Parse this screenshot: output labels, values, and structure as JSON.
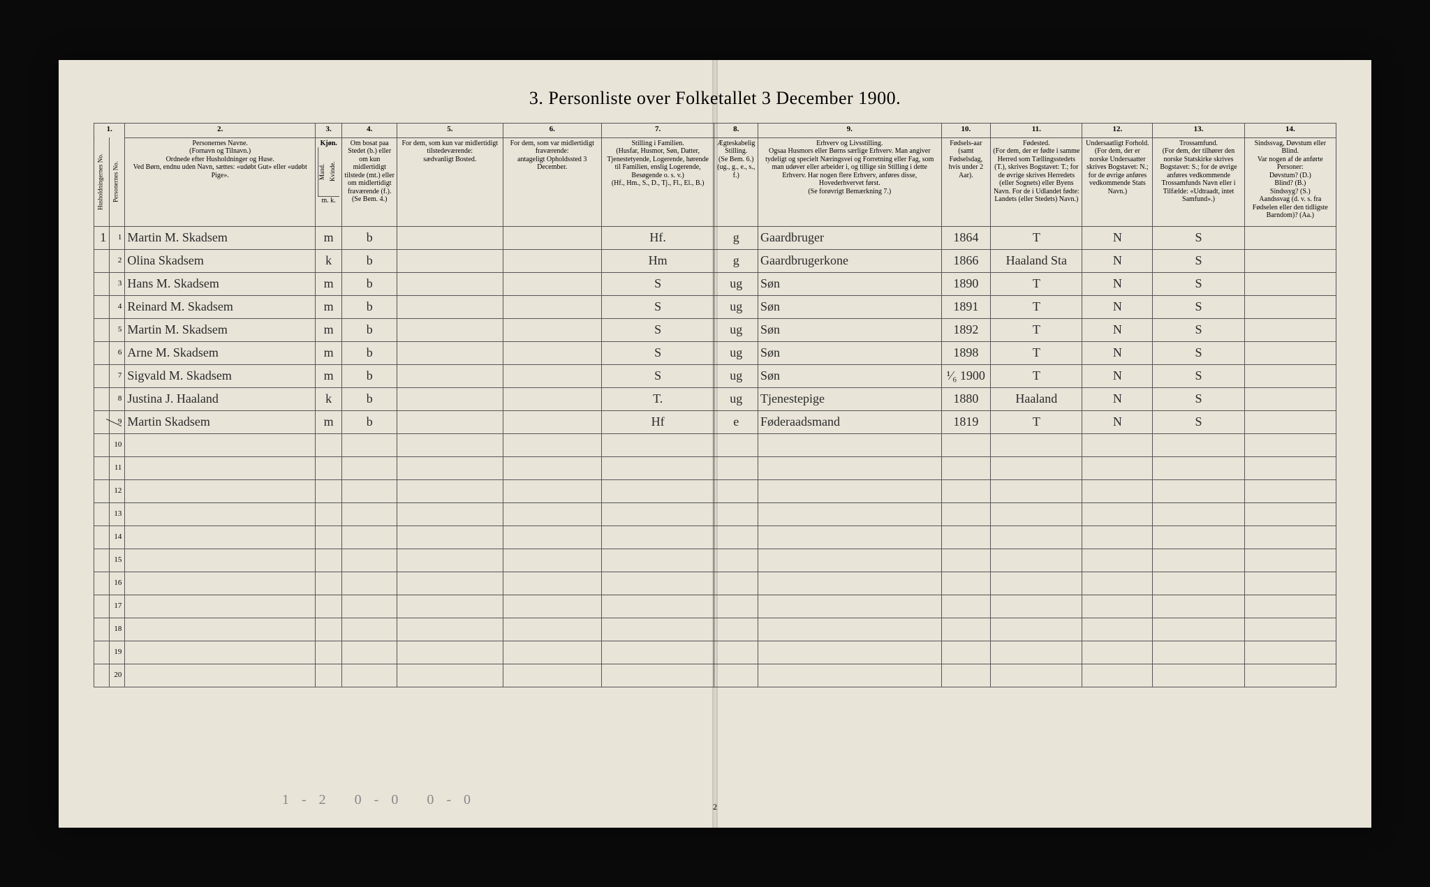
{
  "title": "3. Personliste over Folketallet 3 December 1900.",
  "page_number": "2",
  "pencil_note": "1-2 0-0 0-0",
  "columns": {
    "c1": "1.",
    "c2": "2.",
    "c3": "3.",
    "c4": "4.",
    "c5": "5.",
    "c6": "6.",
    "c7": "7.",
    "c8": "8.",
    "c9": "9.",
    "c10": "10.",
    "c11": "11.",
    "c12": "12.",
    "c13": "13.",
    "c14": "14."
  },
  "headers": {
    "h1a": "Husholdningernes No.",
    "h1b": "Personernes No.",
    "h2": "Personernes Navne.\n(Fornavn og Tilnavn.)\nOrdnede efter Husholdninger og Huse.\nVed Børn, endnu uden Navn, sættes: «udøbt Gut» eller «udøbt Pige».",
    "h3": "Kjøn.",
    "h3a": "Mand.",
    "h3b": "Kvinde.",
    "h3c": "m. k.",
    "h4": "Om bosat paa Stedet (b.) eller om kun midlertidigt tilstede (mt.) eller om midlertidigt fraværende (f.). (Se Bem. 4.)",
    "h5": "For dem, som kun var midlertidigt tilstedeværende:\nsædvanligt Bosted.",
    "h6": "For dem, som var midlertidigt fraværende:\nantageligt Opholdssted 3 December.",
    "h7": "Stilling i Familien.\n(Husfar, Husmor, Søn, Datter, Tjenestetyende, Logerende, hørende til Familien, enslig Logerende, Besøgende o. s. v.)\n(Hf., Hm., S., D., Tj., Fl., El., B.)",
    "h8": "Ægteskabelig Stilling.\n(Se Bem. 6.)\n(ug., g., e., s., f.)",
    "h9": "Erhverv og Livsstilling.\nOgsaa Husmors eller Børns særlige Erhverv. Man angiver tydeligt og specielt Næringsvei og Forretning eller Fag, som man udøver eller arbeider i, og tillige sin Stilling i dette Erhverv. Har nogen flere Erhverv, anføres disse, Hovederhvervet først.\n(Se forøvrigt Bemærkning 7.)",
    "h10": "Fødsels-aar\n(samt Fødselsdag, hvis under 2 Aar).",
    "h11": "Fødested.\n(For dem, der er fødte i samme Herred som Tællingsstedets (T.), skrives Bogstavet: T.; for de øvrige skrives Herredets (eller Sognets) eller Byens Navn. For de i Udlandet fødte: Landets (eller Stedets) Navn.)",
    "h12": "Undersaatligt Forhold.\n(For dem, der er norske Undersaatter skrives Bogstavet: N.; for de øvrige anføres vedkommende Stats Navn.)",
    "h13": "Trossamfund.\n(For dem, der tilhører den norske Statskirke skrives Bogstavet: S.; for de øvrige anføres vedkommende Trossamfunds Navn eller i Tilfælde: «Udtraadt, intet Samfund».)",
    "h14": "Sindssvag, Døvstum eller Blind.\nVar nogen af de anførte Personer:\nDøvstum? (D.)\nBlind? (B.)\nSindssyg? (S.)\nAandssvag (d. v. s. fra Fødselen eller den tidligste Barndom)? (Aa.)"
  },
  "rows": [
    {
      "hh": "1",
      "pn": "1",
      "name": "Martin M. Skadsem",
      "sex": "m",
      "res": "b",
      "c5": "",
      "c6": "",
      "fam": "Hf.",
      "mar": "g",
      "occ": "Gaardbruger",
      "year": "1864",
      "birthplace": "T",
      "nat": "N",
      "rel": "S",
      "c14": ""
    },
    {
      "hh": "",
      "pn": "2",
      "name": "Olina Skadsem",
      "sex": "k",
      "res": "b",
      "c5": "",
      "c6": "",
      "fam": "Hm",
      "mar": "g",
      "occ": "Gaardbrugerkone",
      "year": "1866",
      "birthplace": "Haaland Sta",
      "nat": "N",
      "rel": "S",
      "c14": ""
    },
    {
      "hh": "",
      "pn": "3",
      "name": "Hans M. Skadsem",
      "sex": "m",
      "res": "b",
      "c5": "",
      "c6": "",
      "fam": "S",
      "mar": "ug",
      "occ": "Søn",
      "year": "1890",
      "birthplace": "T",
      "nat": "N",
      "rel": "S",
      "c14": ""
    },
    {
      "hh": "",
      "pn": "4",
      "name": "Reinard M. Skadsem",
      "sex": "m",
      "res": "b",
      "c5": "",
      "c6": "",
      "fam": "S",
      "mar": "ug",
      "occ": "Søn",
      "year": "1891",
      "birthplace": "T",
      "nat": "N",
      "rel": "S",
      "c14": ""
    },
    {
      "hh": "",
      "pn": "5",
      "name": "Martin M. Skadsem",
      "sex": "m",
      "res": "b",
      "c5": "",
      "c6": "",
      "fam": "S",
      "mar": "ug",
      "occ": "Søn",
      "year": "1892",
      "birthplace": "T",
      "nat": "N",
      "rel": "S",
      "c14": ""
    },
    {
      "hh": "",
      "pn": "6",
      "name": "Arne M. Skadsem",
      "sex": "m",
      "res": "b",
      "c5": "",
      "c6": "",
      "fam": "S",
      "mar": "ug",
      "occ": "Søn",
      "year": "1898",
      "birthplace": "T",
      "nat": "N",
      "rel": "S",
      "c14": ""
    },
    {
      "hh": "",
      "pn": "7",
      "name": "Sigvald M. Skadsem",
      "sex": "m",
      "res": "b",
      "c5": "",
      "c6": "",
      "fam": "S",
      "mar": "ug",
      "occ": "Søn",
      "year": "¹⁄₆ 1900",
      "birthplace": "T",
      "nat": "N",
      "rel": "S",
      "c14": ""
    },
    {
      "hh": "",
      "pn": "8",
      "name": "Justina J. Haaland",
      "sex": "k",
      "res": "b",
      "c5": "",
      "c6": "",
      "fam": "T.",
      "mar": "ug",
      "occ": "Tjenestepige",
      "year": "1880",
      "birthplace": "Haaland",
      "nat": "N",
      "rel": "S",
      "c14": ""
    },
    {
      "hh": "",
      "pn": "9",
      "name": "Martin Skadsem",
      "sex": "m",
      "res": "b",
      "c5": "",
      "c6": "",
      "fam": "Hf",
      "mar": "e",
      "occ": "Føderaadsmand",
      "year": "1819",
      "birthplace": "T",
      "nat": "N",
      "rel": "S",
      "c14": "",
      "strike": true
    }
  ],
  "colwidths": {
    "c1a": 22,
    "c1b": 22,
    "c2": 270,
    "c3": 38,
    "c4": 78,
    "c5": 150,
    "c6": 140,
    "c7": 160,
    "c8": 62,
    "c9": 260,
    "c10": 70,
    "c11": 130,
    "c12": 100,
    "c13": 130,
    "c14": 130
  }
}
